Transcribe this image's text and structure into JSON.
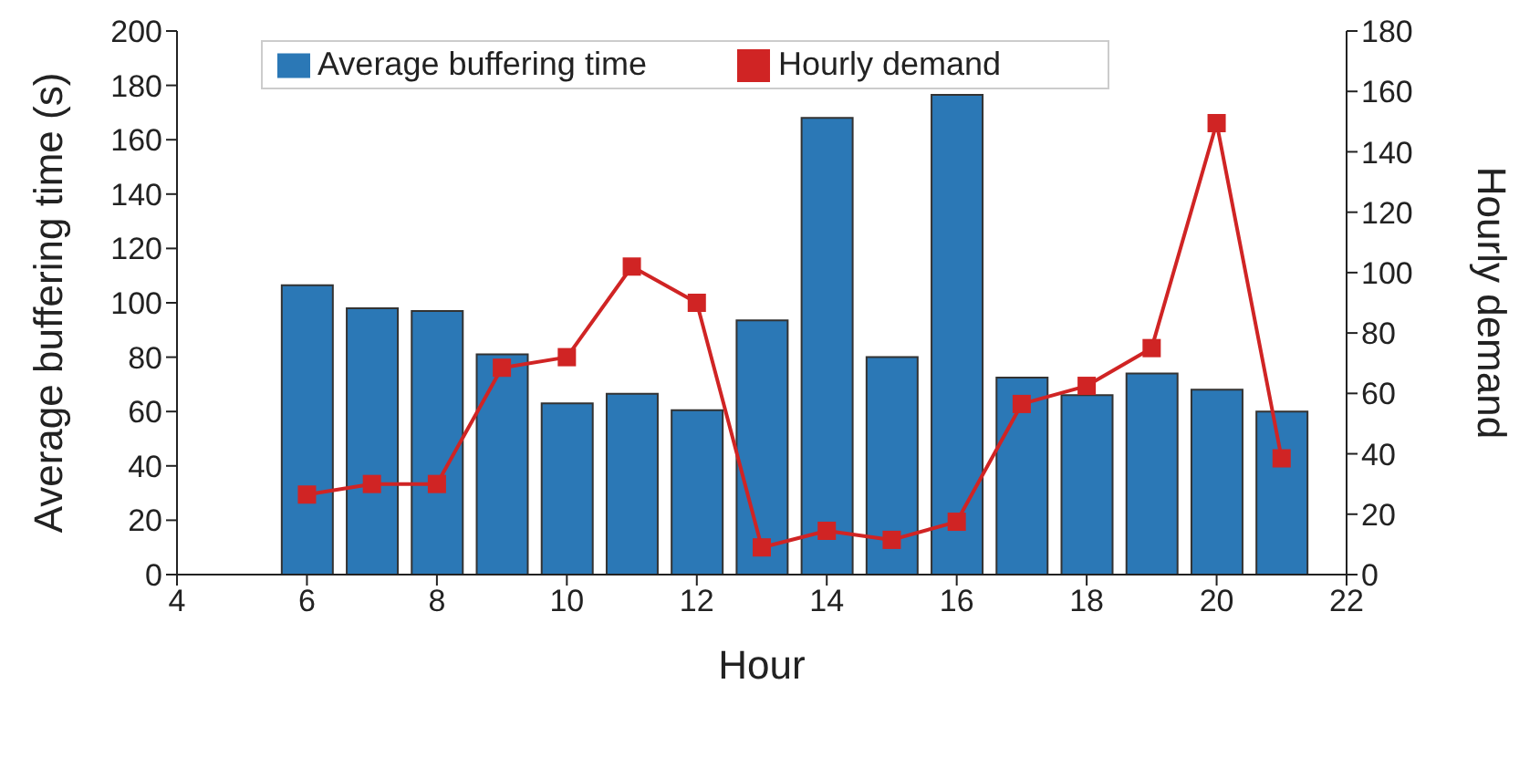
{
  "chart_data": {
    "type": "bar",
    "xlabel": "Hour",
    "ylabel": "Average buffering time (s)",
    "y2label": "Hourly demand",
    "x": [
      6,
      7,
      8,
      9,
      10,
      11,
      12,
      13,
      14,
      15,
      16,
      17,
      18,
      19,
      20,
      21
    ],
    "series": [
      {
        "name": "Average buffering time",
        "color": "#2b78b6",
        "values": [
          106.5,
          98,
          97,
          81,
          63,
          66.5,
          60.5,
          93.5,
          168,
          80,
          176.5,
          72.5,
          66,
          74,
          68,
          60
        ]
      },
      {
        "name": "Hourly demand",
        "type": "line",
        "axis": "y2",
        "color": "#d02424",
        "marker": "square",
        "values": [
          26.5,
          30,
          30,
          68.5,
          72,
          102,
          90,
          9,
          14.5,
          11.5,
          17.5,
          56.5,
          62.5,
          75,
          149.5,
          38.5
        ]
      }
    ],
    "xlim": [
      4,
      22
    ],
    "xticks": [
      4,
      6,
      8,
      10,
      12,
      14,
      16,
      18,
      20,
      22
    ],
    "ylim": [
      0,
      200
    ],
    "yticks": [
      0,
      20,
      40,
      60,
      80,
      100,
      120,
      140,
      160,
      180,
      200
    ],
    "y2lim": [
      0,
      180
    ],
    "y2ticks": [
      0,
      20,
      40,
      60,
      80,
      100,
      120,
      140,
      160,
      180
    ],
    "grid": false,
    "legend": "top"
  }
}
